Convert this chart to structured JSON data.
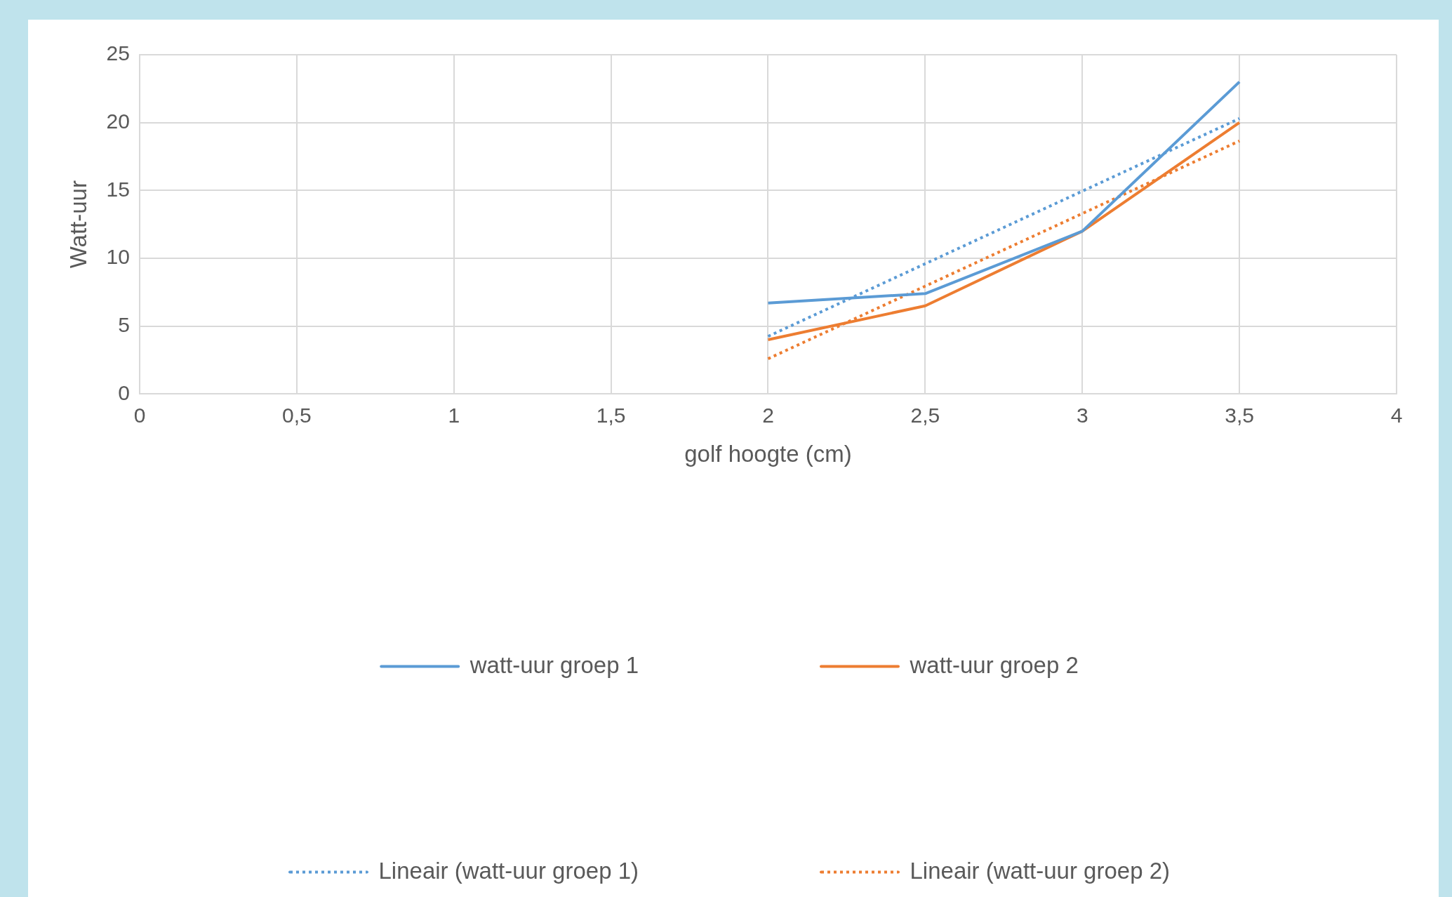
{
  "chart_data": {
    "type": "line",
    "xlabel": "golf hoogte (cm)",
    "ylabel": "Watt-uur",
    "xlim": [
      0,
      4
    ],
    "xticks": [
      0,
      {
        "value": 0.5,
        "label": "0,5"
      },
      1,
      {
        "value": 1.5,
        "label": "1,5"
      },
      2,
      {
        "value": 2.5,
        "label": "2,5"
      },
      3,
      {
        "value": 3.5,
        "label": "3,5"
      },
      4
    ],
    "ylim": [
      0,
      25
    ],
    "yticks": [
      0,
      5,
      10,
      15,
      20,
      25
    ],
    "grid": true,
    "legend": "bottom",
    "marker": "none",
    "series": [
      {
        "name": "watt-uur groep 1",
        "color": "#5b9bd5",
        "x": [
          2,
          2.5,
          3,
          3.5
        ],
        "values": [
          6.7,
          7.4,
          12,
          23
        ],
        "line_style": "solid"
      },
      {
        "name": "watt-uur groep 2",
        "color": "#ed7d31",
        "x": [
          2,
          2.5,
          3,
          3.5
        ],
        "values": [
          4,
          6.5,
          12,
          20
        ],
        "line_style": "solid"
      },
      {
        "name": "Lineair (watt-uur groep 1)",
        "color": "#5b9bd5",
        "x": [
          2,
          3.5
        ],
        "values": [
          4.25,
          20.3
        ],
        "line_style": "dotted"
      },
      {
        "name": "Lineair (watt-uur groep 2)",
        "color": "#ed7d31",
        "x": [
          2,
          3.5
        ],
        "values": [
          2.6,
          18.65
        ],
        "line_style": "dotted"
      }
    ]
  }
}
